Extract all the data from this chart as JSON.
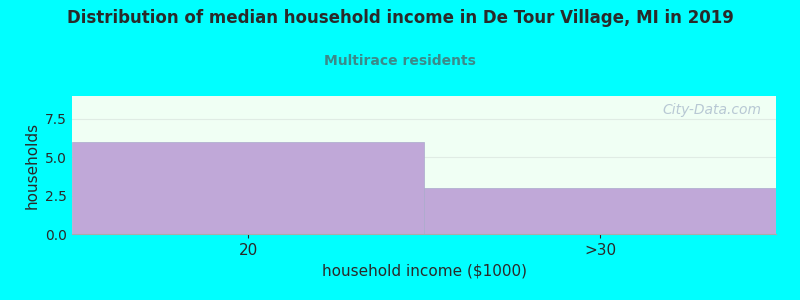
{
  "title": "Distribution of median household income in De Tour Village, MI in 2019",
  "subtitle": "Multirace residents",
  "categories": [
    "20",
    ">30"
  ],
  "values": [
    6,
    3
  ],
  "bar_color": "#c0a8d8",
  "background_color": "#00ffff",
  "plot_bg_color": "#f0fff4",
  "title_color": "#2a2a2a",
  "subtitle_color": "#3a8a8a",
  "xlabel": "household income ($1000)",
  "ylabel": "households",
  "ylim": [
    0,
    9
  ],
  "yticks": [
    0,
    2.5,
    5,
    7.5
  ],
  "watermark": "City-Data.com",
  "watermark_color": "#b8c8d4",
  "grid_color": "#e0ece4",
  "bar_edge_color": "#aaaacc"
}
